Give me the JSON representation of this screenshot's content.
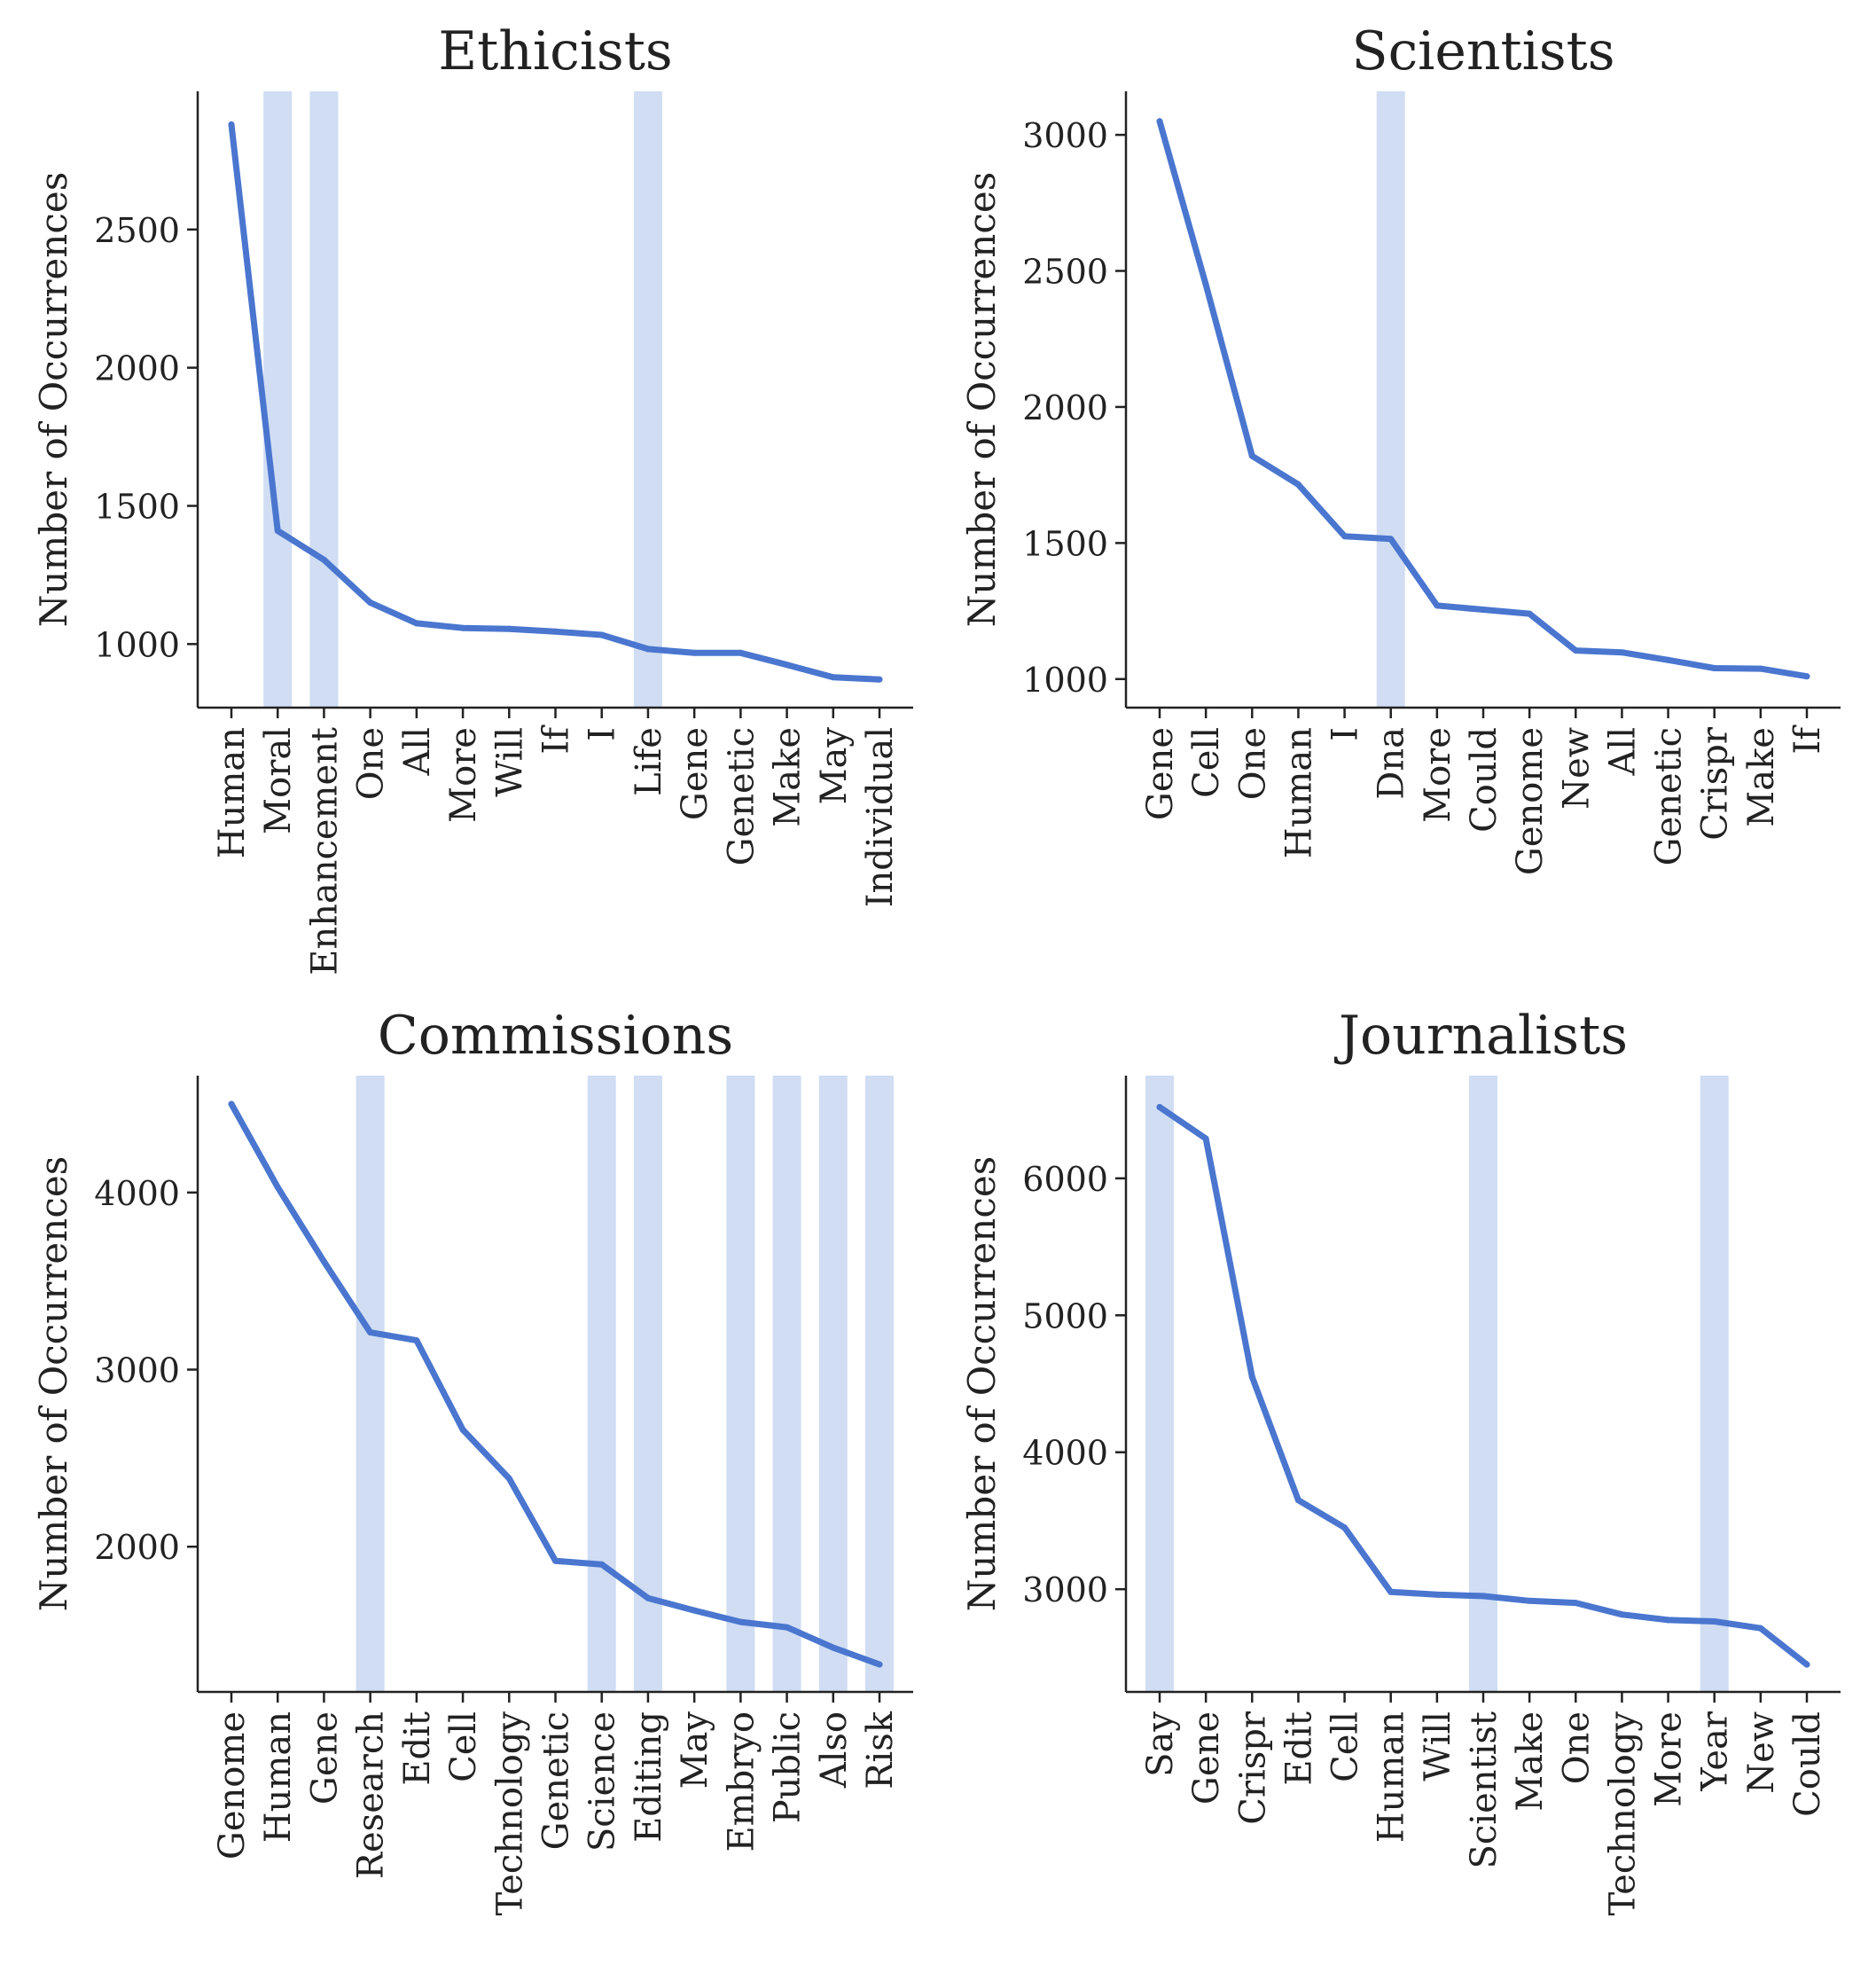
{
  "figure": {
    "line_color": "#4a76cf",
    "highlight_color": "#d0ddf3",
    "axis_color": "#222222"
  },
  "chart_data": [
    {
      "type": "line",
      "title": "Ethicists",
      "ylabel": "Number of Occurrences",
      "xlabel": "",
      "categories": [
        "Human",
        "Moral",
        "Enhancement",
        "One",
        "All",
        "More",
        "Will",
        "If",
        "I",
        "Life",
        "Gene",
        "Genetic",
        "Make",
        "May",
        "Individual"
      ],
      "values": [
        2880,
        1410,
        1305,
        1150,
        1075,
        1058,
        1055,
        1045,
        1033,
        982,
        968,
        968,
        925,
        880,
        872
      ],
      "highlighted": [
        "Moral",
        "Enhancement",
        "Life"
      ],
      "ylim": [
        770,
        3000
      ],
      "yticks": [
        1000,
        1500,
        2000,
        2500
      ],
      "grid": false
    },
    {
      "type": "line",
      "title": "Scientists",
      "ylabel": "Number of Occurrences",
      "xlabel": "",
      "categories": [
        "Gene",
        "Cell",
        "One",
        "Human",
        "I",
        "Dna",
        "More",
        "Could",
        "Genome",
        "New",
        "All",
        "Genetic",
        "Crispr",
        "Make",
        "If"
      ],
      "values": [
        3050,
        2450,
        1820,
        1715,
        1525,
        1515,
        1270,
        1255,
        1240,
        1105,
        1098,
        1070,
        1040,
        1038,
        1010
      ],
      "highlighted": [
        "Dna"
      ],
      "ylim": [
        895,
        3160
      ],
      "yticks": [
        1000,
        1500,
        2000,
        2500,
        3000
      ],
      "grid": false
    },
    {
      "type": "line",
      "title": "Commissions",
      "ylabel": "Number of Occurrences",
      "xlabel": "",
      "categories": [
        "Genome",
        "Human",
        "Gene",
        "Research",
        "Edit",
        "Cell",
        "Technology",
        "Genetic",
        "Science",
        "Editing",
        "May",
        "Embryo",
        "Public",
        "Also",
        "Risk"
      ],
      "values": [
        4500,
        4030,
        3610,
        3210,
        3165,
        2660,
        2385,
        1920,
        1900,
        1710,
        1640,
        1575,
        1545,
        1430,
        1335
      ],
      "highlighted": [
        "Research",
        "Science",
        "Editing",
        "Embryo",
        "Public",
        "Also",
        "Risk"
      ],
      "ylim": [
        1180,
        4660
      ],
      "yticks": [
        2000,
        3000,
        4000
      ],
      "grid": false
    },
    {
      "type": "line",
      "title": "Journalists",
      "ylabel": "Number of Occurrences",
      "xlabel": "",
      "categories": [
        "Say",
        "Gene",
        "Crispr",
        "Edit",
        "Cell",
        "Human",
        "Will",
        "Scientist",
        "Make",
        "One",
        "Technology",
        "More",
        "Year",
        "New",
        "Could"
      ],
      "values": [
        6520,
        6290,
        4550,
        3650,
        3450,
        2980,
        2960,
        2950,
        2915,
        2900,
        2815,
        2775,
        2765,
        2715,
        2450
      ],
      "highlighted": [
        "Say",
        "Scientist",
        "Year"
      ],
      "ylim": [
        2250,
        6750
      ],
      "yticks": [
        3000,
        4000,
        5000,
        6000
      ],
      "grid": false
    }
  ]
}
